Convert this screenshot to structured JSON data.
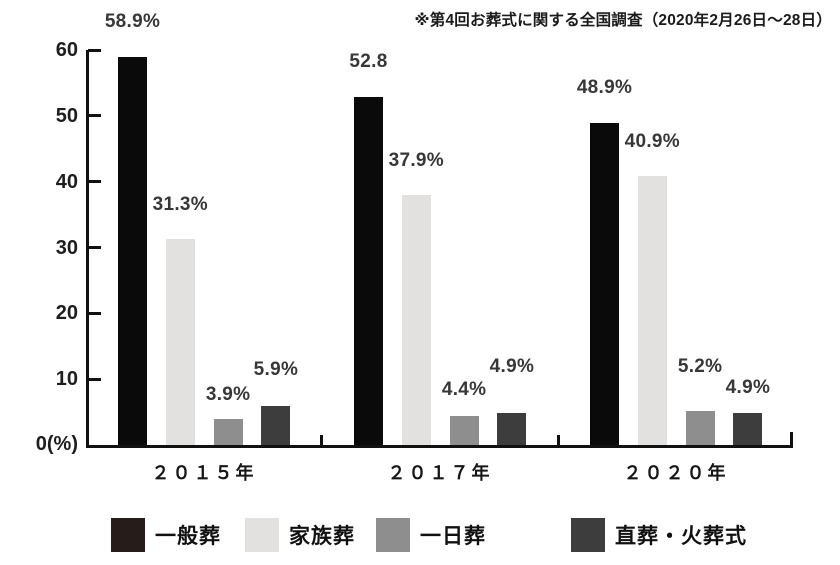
{
  "chart_data": {
    "type": "bar",
    "note": "※第4回お葬式に関する全国調査（2020年2月26日～28日）",
    "categories": [
      "２０１５年",
      "２０１７年",
      "２０２０年"
    ],
    "series": [
      {
        "name": "一般葬",
        "color": "#0a0a0a",
        "legend_color": "#261d1b",
        "values": [
          58.9,
          52.8,
          48.9
        ],
        "labels": [
          "58.9%",
          "52.8",
          "48.9%"
        ]
      },
      {
        "name": "家族葬",
        "color": "#e2e1df",
        "legend_color": "#e2e1df",
        "values": [
          31.3,
          37.9,
          40.9
        ],
        "labels": [
          "31.3%",
          "37.9%",
          "40.9%"
        ]
      },
      {
        "name": "一日葬",
        "color": "#8e8e8e",
        "legend_color": "#8e8e8e",
        "values": [
          3.9,
          4.4,
          5.2
        ],
        "labels": [
          "3.9%",
          "4.4%",
          "5.2%"
        ]
      },
      {
        "name": "直葬・火葬式",
        "color": "#3d3d3d",
        "legend_color": "#3d3d3d",
        "values": [
          5.9,
          4.9,
          4.9
        ],
        "labels": [
          "5.9%",
          "4.9%",
          "4.9%"
        ]
      }
    ],
    "yticks": [
      60,
      50,
      40,
      30,
      20,
      10
    ],
    "y_zero_label": "0(%)",
    "ylim": [
      0,
      60
    ],
    "unit": "%",
    "legend_position": "bottom",
    "grid": false
  }
}
